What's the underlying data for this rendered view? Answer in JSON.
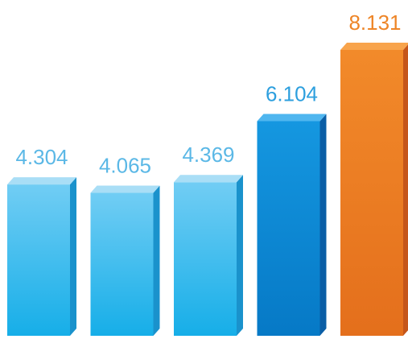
{
  "chart_data": {
    "type": "bar",
    "categories": [
      "",
      "",
      "",
      "",
      ""
    ],
    "values": [
      4.304,
      4.065,
      4.369,
      6.104,
      8.131
    ],
    "value_labels": [
      "4.304",
      "4.065",
      "4.369",
      "6.104",
      "8.131"
    ],
    "title": "",
    "xlabel": "",
    "ylabel": "",
    "ylim": [
      0,
      8.5
    ],
    "grid": false,
    "legend": "none",
    "style": "3d-columns"
  },
  "colors": {
    "light_blue_front": "#3fb9ec",
    "light_blue_top": "#a9def6",
    "light_blue_side": "#1a92cc",
    "light_blue_label": "#5bb8e6",
    "mid_blue_front": "#0c88d4",
    "mid_blue_top": "#4fb6ef",
    "mid_blue_side": "#0a5ea6",
    "mid_blue_label": "#2d9fde",
    "orange_front": "#ee7f22",
    "orange_top": "#f8a44c",
    "orange_side": "#c5561a",
    "orange_label": "#ee8527"
  },
  "bar_styles": [
    "light",
    "light",
    "light",
    "mid",
    "orange"
  ]
}
